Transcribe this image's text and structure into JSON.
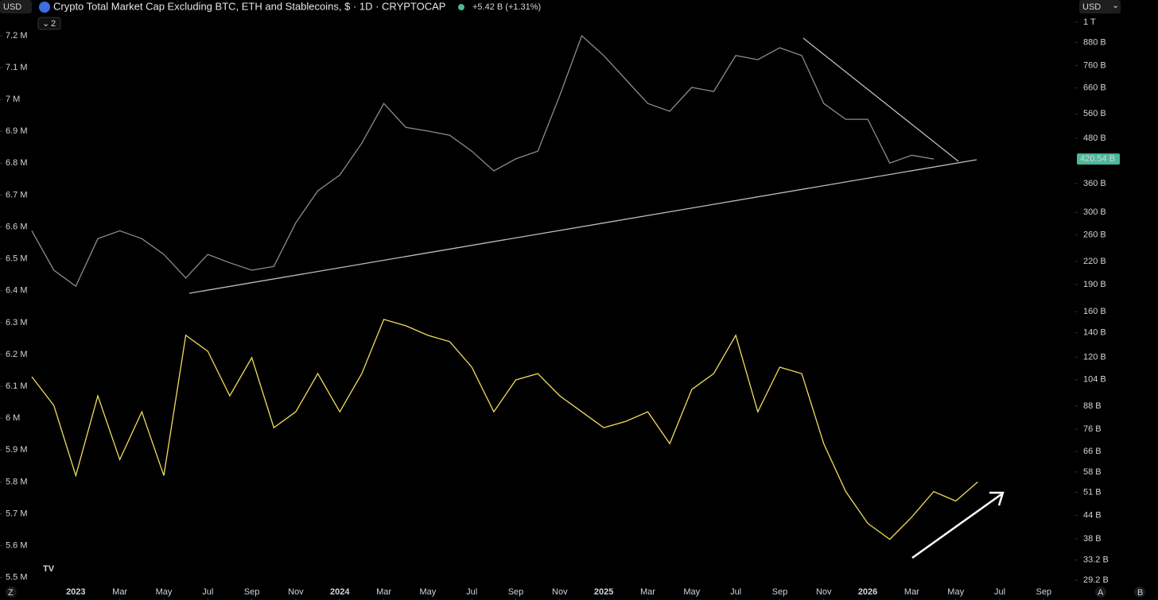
{
  "header": {
    "currency": "USD",
    "title": "Crypto Total Market Cap Excluding BTC, ETH and Stablecoins, $ · 1D · CRYPTOCAP",
    "change": "+5.42 B (+1.31%)",
    "indicators_count": 2,
    "currency_selector": "USD"
  },
  "chart_data": {
    "type": "line",
    "xlim": [
      "2022-11",
      "2026-10"
    ],
    "xticks": [
      {
        "value": "2023-01",
        "label": "2023"
      },
      {
        "value": "2023-03",
        "label": "Mar"
      },
      {
        "value": "2023-05",
        "label": "May"
      },
      {
        "value": "2023-07",
        "label": "Jul"
      },
      {
        "value": "2023-09",
        "label": "Sep"
      },
      {
        "value": "2023-11",
        "label": "Nov"
      },
      {
        "value": "2024-01",
        "label": "2024"
      },
      {
        "value": "2024-03",
        "label": "Mar"
      },
      {
        "value": "2024-05",
        "label": "May"
      },
      {
        "value": "2024-07",
        "label": "Jul"
      },
      {
        "value": "2024-09",
        "label": "Sep"
      },
      {
        "value": "2024-11",
        "label": "Nov"
      },
      {
        "value": "2025-01",
        "label": "2025"
      },
      {
        "value": "2025-03",
        "label": "Mar"
      },
      {
        "value": "2025-05",
        "label": "May"
      },
      {
        "value": "2025-07",
        "label": "Jul"
      },
      {
        "value": "2025-09",
        "label": "Sep"
      },
      {
        "value": "2025-11",
        "label": "Nov"
      },
      {
        "value": "2026-01",
        "label": "2026"
      },
      {
        "value": "2026-03",
        "label": "Mar"
      },
      {
        "value": "2026-05",
        "label": "May"
      },
      {
        "value": "2026-07",
        "label": "Jul"
      },
      {
        "value": "2026-09",
        "label": "Sep"
      }
    ],
    "ylim": [
      5.467,
      7.262
    ],
    "yticks": [
      {
        "value": 7.2,
        "label": "7.2 M"
      },
      {
        "value": 7.1,
        "label": "7.1 M"
      },
      {
        "value": 7,
        "label": "7 M"
      },
      {
        "value": 6.9,
        "label": "6.9 M"
      },
      {
        "value": 6.8,
        "label": "6.8 M"
      },
      {
        "value": 6.7,
        "label": "6.7 M"
      },
      {
        "value": 6.6,
        "label": "6.6 M"
      },
      {
        "value": 6.5,
        "label": "6.5 M"
      },
      {
        "value": 6.4,
        "label": "6.4 M"
      },
      {
        "value": 6.3,
        "label": "6.3 M"
      },
      {
        "value": 6.2,
        "label": "6.2 M"
      },
      {
        "value": 6.1,
        "label": "6.1 M"
      },
      {
        "value": 6,
        "label": "6 M"
      },
      {
        "value": 5.9,
        "label": "5.9 M"
      },
      {
        "value": 5.8,
        "label": "5.8 M"
      },
      {
        "value": 5.7,
        "label": "5.7 M"
      },
      {
        "value": 5.6,
        "label": "5.6 M"
      },
      {
        "value": 5.5,
        "label": "5.5 M"
      }
    ],
    "y2lim": [
      27.8,
      1041
    ],
    "y2scale": "log",
    "y2ticks": [
      {
        "value": 1000,
        "label": "1 T"
      },
      {
        "value": 880,
        "label": "880 B"
      },
      {
        "value": 760,
        "label": "760 B"
      },
      {
        "value": 660,
        "label": "660 B"
      },
      {
        "value": 560,
        "label": "560 B"
      },
      {
        "value": 480,
        "label": "480 B"
      },
      {
        "value": 360,
        "label": "360 B"
      },
      {
        "value": 300,
        "label": "300 B"
      },
      {
        "value": 260,
        "label": "260 B"
      },
      {
        "value": 220,
        "label": "220 B"
      },
      {
        "value": 190,
        "label": "190 B"
      },
      {
        "value": 160,
        "label": "160 B"
      },
      {
        "value": 140,
        "label": "140 B"
      },
      {
        "value": 120,
        "label": "120 B"
      },
      {
        "value": 104,
        "label": "104 B"
      },
      {
        "value": 88,
        "label": "88 B"
      },
      {
        "value": 76,
        "label": "76 B"
      },
      {
        "value": 66,
        "label": "66 B"
      },
      {
        "value": 58,
        "label": "58 B"
      },
      {
        "value": 51,
        "label": "51 B"
      },
      {
        "value": 44,
        "label": "44 B"
      },
      {
        "value": 38,
        "label": "38 B"
      },
      {
        "value": 33.2,
        "label": "33.2 B"
      },
      {
        "value": 29.2,
        "label": "29.2 B"
      }
    ],
    "grid": false,
    "series": [
      {
        "color": "#8c8c8c",
        "axis": "y2",
        "last_value_label": "420.54 B",
        "last_label_color": "#4db89a",
        "x": [
          "2022-11",
          "2022-12",
          "2023-01",
          "2023-02",
          "2023-03",
          "2023-04",
          "2023-05",
          "2023-06",
          "2023-07",
          "2023-08",
          "2023-09",
          "2023-10",
          "2023-11",
          "2023-12",
          "2024-01",
          "2024-02",
          "2024-03",
          "2024-04",
          "2024-05",
          "2024-06",
          "2024-07",
          "2024-08",
          "2024-09",
          "2024-10",
          "2024-11",
          "2024-12",
          "2025-01",
          "2025-02",
          "2025-03",
          "2025-04",
          "2025-05",
          "2025-06",
          "2025-07",
          "2025-08",
          "2025-09",
          "2025-10",
          "2025-11",
          "2025-12",
          "2026-01",
          "2026-02",
          "2026-03",
          "2026-04"
        ],
        "values": [
          267,
          208,
          188,
          254,
          267,
          254,
          230,
          198,
          230,
          218,
          208,
          213,
          281,
          344,
          380,
          465,
          598,
          514,
          502,
          489,
          442,
          390,
          421,
          442,
          629,
          918,
          810,
          696,
          598,
          569,
          662,
          645,
          810,
          789,
          851,
          810,
          598,
          541,
          541,
          410,
          431,
          420.54
        ]
      },
      {
        "color": "#f2dc5d",
        "x": [
          "2022-11",
          "2022-12",
          "2023-01",
          "2023-02",
          "2023-03",
          "2023-04",
          "2023-05",
          "2023-06",
          "2023-07",
          "2023-08",
          "2023-09",
          "2023-10",
          "2023-11",
          "2023-12",
          "2024-01",
          "2024-02",
          "2024-03",
          "2024-04",
          "2024-05",
          "2024-06",
          "2024-07",
          "2024-08",
          "2024-09",
          "2024-10",
          "2024-11",
          "2024-12",
          "2025-01",
          "2025-02",
          "2025-03",
          "2025-04",
          "2025-05",
          "2025-06",
          "2025-07",
          "2025-08",
          "2025-09",
          "2025-10",
          "2025-11",
          "2025-12",
          "2026-01",
          "2026-02",
          "2026-03",
          "2026-04",
          "2026-05",
          "2026-06"
        ],
        "values": [
          6.13,
          6.04,
          5.82,
          6.07,
          5.87,
          6.02,
          5.82,
          6.26,
          6.21,
          6.07,
          6.19,
          5.97,
          6.02,
          6.14,
          6.02,
          6.14,
          6.31,
          6.29,
          6.26,
          6.24,
          6.16,
          6.02,
          6.12,
          6.14,
          6.07,
          6.02,
          5.97,
          5.99,
          6.02,
          5.92,
          6.09,
          6.14,
          6.26,
          6.02,
          6.16,
          6.14,
          5.92,
          5.77,
          5.67,
          5.62,
          5.69,
          5.77,
          5.74,
          5.8
        ]
      }
    ]
  },
  "footer": {
    "left": "Z",
    "right_a": "A",
    "right_b": "B"
  }
}
